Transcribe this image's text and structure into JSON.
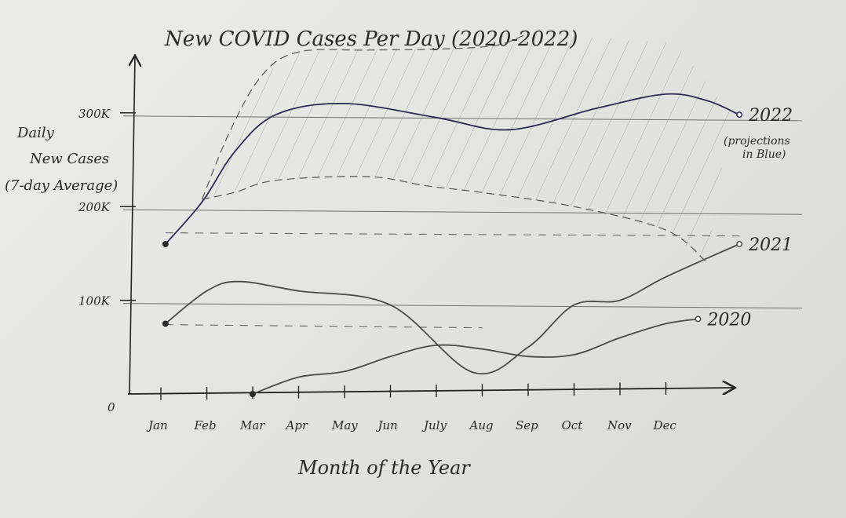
{
  "chart_data": {
    "type": "line",
    "title": "New COVID Cases Per Day (2020-2022)",
    "xlabel": "Month of the Year",
    "ylabel_lines": [
      "Daily",
      "New Cases",
      "(7-day Average)"
    ],
    "categories": [
      "Jan",
      "Feb",
      "Mar",
      "Apr",
      "May",
      "Jun",
      "July",
      "Aug",
      "Sep",
      "Oct",
      "Nov",
      "Dec"
    ],
    "y_ticks": [
      {
        "value": 0,
        "label": "0"
      },
      {
        "value": 100000,
        "label": "100K"
      },
      {
        "value": 200000,
        "label": "200K"
      },
      {
        "value": 300000,
        "label": "300K"
      }
    ],
    "ylim": [
      0,
      360000
    ],
    "grid": "horizontal",
    "series": [
      {
        "name": "2020",
        "color": "#4a4a4a",
        "style": "solid",
        "x": [
          2.0,
          3.0,
          4.0,
          5.0,
          6.0,
          7.0,
          8.0,
          9.0,
          10.0,
          11.0,
          11.7
        ],
        "values": [
          0,
          18000,
          24000,
          40000,
          52000,
          48000,
          40000,
          42000,
          60000,
          75000,
          80000
        ]
      },
      {
        "name": "2021",
        "color": "#4a4a4a",
        "style": "solid",
        "x": [
          0.1,
          1.0,
          1.7,
          3.0,
          5.0,
          6.8,
          8.0,
          9.0,
          10.0,
          11.0,
          12.6
        ],
        "values": [
          75000,
          110000,
          120000,
          110000,
          95000,
          23000,
          50000,
          95000,
          100000,
          125000,
          160000
        ]
      },
      {
        "name": "2022",
        "color": "#2b2b55",
        "style": "solid",
        "note": "(projections in Blue)",
        "x": [
          0.1,
          0.9,
          1.6,
          2.5,
          4.0,
          6.0,
          7.6,
          9.5,
          11.0,
          11.9,
          12.6
        ],
        "values": [
          160000,
          205000,
          258000,
          298000,
          310000,
          295000,
          282000,
          305000,
          320000,
          313000,
          298000
        ]
      },
      {
        "name": "2022 projection upper bound",
        "color": "#555555",
        "style": "dashed",
        "x": [
          0.9,
          1.5,
          2.2,
          3.0,
          4.5,
          6.0,
          7.3,
          8.0
        ],
        "values": [
          208000,
          280000,
          340000,
          365000,
          367000,
          368000,
          372000,
          385000
        ]
      },
      {
        "name": "2022 projection lower bound",
        "color": "#555555",
        "style": "dashed",
        "x": [
          0.9,
          1.6,
          2.5,
          4.5,
          5.8,
          7.0,
          9.0,
          11.0,
          11.9
        ],
        "values": [
          208000,
          215000,
          228000,
          232000,
          222000,
          215000,
          200000,
          175000,
          140000
        ]
      }
    ],
    "reference_lines": [
      {
        "y": 172000,
        "style": "dashed",
        "x_start": 0.1,
        "x_end": 12.6
      },
      {
        "y": 74000,
        "style": "dashed",
        "x_start": 0.1,
        "x_end": 7.0
      }
    ],
    "annotations": {
      "hatched_region": "2022 projection range"
    }
  }
}
